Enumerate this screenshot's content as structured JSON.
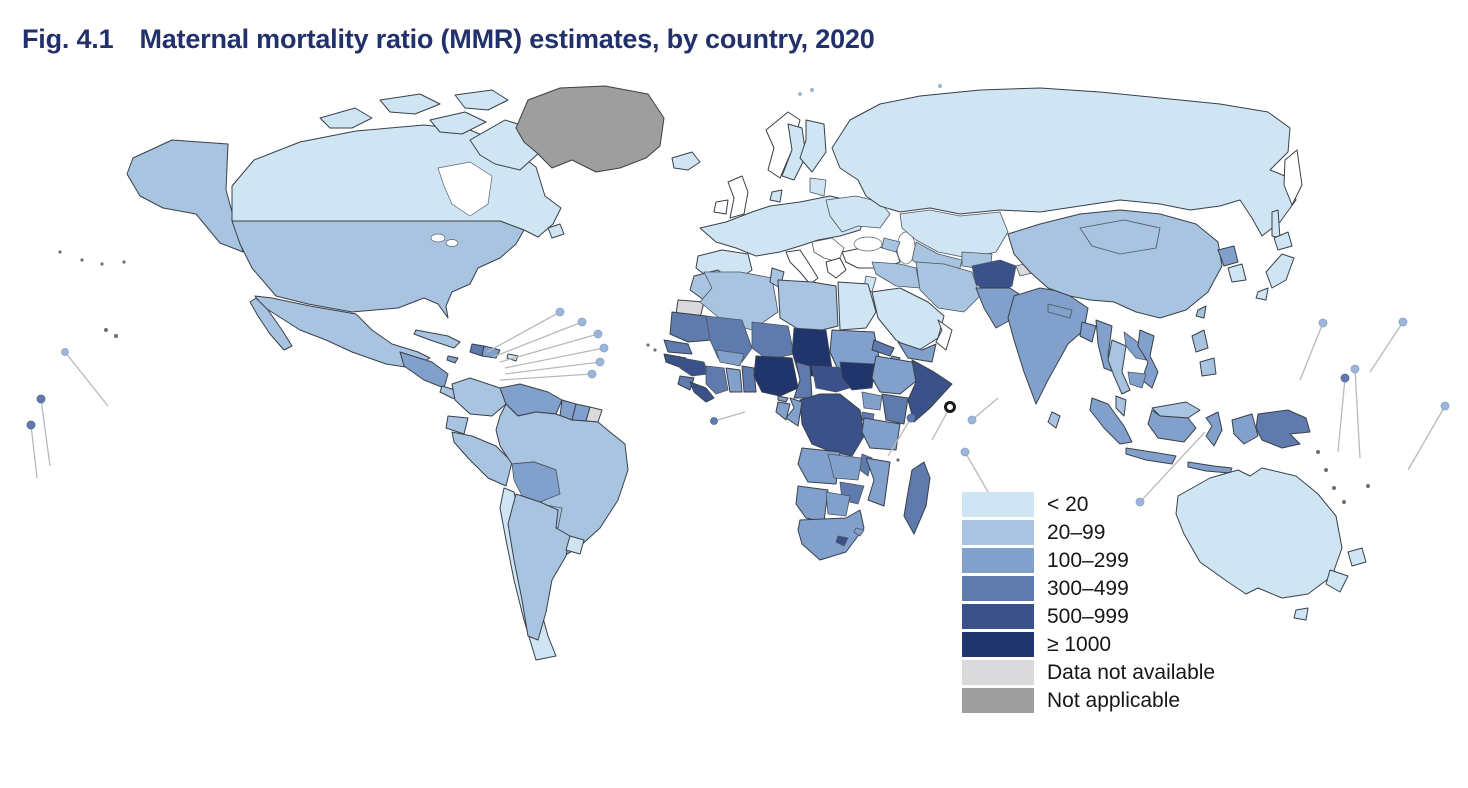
{
  "figure": {
    "number": "Fig. 4.1",
    "title": "Maternal mortality ratio (MMR) estimates, by country, 2020",
    "title_color": "#22316b"
  },
  "legend": {
    "items": [
      {
        "key": "lt20",
        "label": "< 20",
        "color": "#cfe5f4"
      },
      {
        "key": "c20_99",
        "label": "20–99",
        "color": "#a8c4e0"
      },
      {
        "key": "c100_299",
        "label": "100–299",
        "color": "#81a0cb"
      },
      {
        "key": "c300_499",
        "label": "300–499",
        "color": "#5f7aac"
      },
      {
        "key": "c500_999",
        "label": "500–999",
        "color": "#3a5289"
      },
      {
        "key": "ge1000",
        "label": "≥ 1000",
        "color": "#20356b"
      },
      {
        "key": "data_na",
        "label": "Data not available",
        "color": "#dadadc"
      },
      {
        "key": "not_applicable",
        "label": "Not applicable",
        "color": "#9e9e9e"
      }
    ]
  },
  "chart_data": {
    "type": "heatmap",
    "subtype": "choropleth-world-map",
    "title": "Fig. 4.1  Maternal mortality ratio (MMR) estimates, by country, 2020",
    "metric": "Maternal mortality ratio (MMR)",
    "year": "2020",
    "legend_position": "bottom-right",
    "categories": [
      "< 20",
      "20–99",
      "100–299",
      "300–499",
      "500–999",
      "≥ 1000",
      "Data not available",
      "Not applicable"
    ],
    "category_colors": [
      "#cfe5f4",
      "#a8c4e0",
      "#81a0cb",
      "#5f7aac",
      "#3a5289",
      "#20356b",
      "#dadadc",
      "#9e9e9e"
    ],
    "region_categories": {
      "canada": "lt20",
      "newfoundland": "lt20",
      "arctic-islands-1": "lt20",
      "arctic-islands-2": "lt20",
      "arctic-islands-3": "lt20",
      "arctic-islands-4": "lt20",
      "baffin-island": "lt20",
      "greenland": "not_applicable",
      "alaska": "c20_99",
      "usa": "c20_99",
      "mexico": "c20_99",
      "baja-california": "c20_99",
      "guatemala-honduras-nicaragua": "c100_299",
      "costa-rica-panama": "c20_99",
      "cuba": "c20_99",
      "jamaica": "c100_299",
      "haiti": "c300_499",
      "dominican-republic": "c100_299",
      "puerto-rico": "lt20",
      "colombia": "c20_99",
      "venezuela": "c100_299",
      "guyana": "c100_299",
      "suriname": "c100_299",
      "french-guiana": "data_na",
      "ecuador": "c20_99",
      "peru": "c20_99",
      "brazil": "c20_99",
      "bolivia": "c100_299",
      "paraguay": "c20_99",
      "chile": "lt20",
      "argentina": "c20_99",
      "uruguay": "lt20",
      "iceland": "lt20",
      "united-kingdom": "none",
      "ireland": "none",
      "norway": "none",
      "sweden": "lt20",
      "finland": "lt20",
      "baltic-states": "lt20",
      "denmark": "lt20",
      "west-central-europe": "lt20",
      "iberia": "lt20",
      "italy": "none",
      "balkans": "none",
      "greece": "none",
      "ukraine-east-europe": "lt20",
      "turkey": "none",
      "russia": "lt20",
      "kamchatka": "none",
      "sakhalin": "lt20",
      "kazakhstan": "lt20",
      "uzbekistan-turkmenistan": "c20_99",
      "kyrgyzstan-tajikistan": "c20_99",
      "caucasus": "c20_99",
      "syria-iraq": "c20_99",
      "iran": "c20_99",
      "saudi-arabia": "lt20",
      "jordan-israel": "lt20",
      "yemen": "c100_299",
      "oman": "none",
      "afghanistan": "c500_999",
      "jammu-kashmir": "data_na",
      "pakistan": "c100_299",
      "india": "c100_299",
      "nepal": "c100_299",
      "bangladesh": "c100_299",
      "sri-lanka": "c20_99",
      "china": "c20_99",
      "mongolia": "c20_99",
      "north-korea": "c100_299",
      "south-korea": "lt20",
      "japan-hokkaido": "lt20",
      "japan-honshu": "lt20",
      "japan-kyushu": "lt20",
      "taiwan": "c20_99",
      "myanmar": "c100_299",
      "thailand": "c20_99",
      "laos": "c100_299",
      "vietnam": "c100_299",
      "cambodia": "c100_299",
      "malaysia-peninsula": "c20_99",
      "malaysia-borneo": "c20_99",
      "philippines-luzon": "c20_99",
      "philippines-mindanao": "c20_99",
      "sumatra": "c100_299",
      "java": "c100_299",
      "kalimantan": "c100_299",
      "sulawesi": "c100_299",
      "lesser-sunda": "c100_299",
      "west-papua": "c100_299",
      "papua-new-guinea": "c300_499",
      "morocco": "c20_99",
      "western-sahara": "data_na",
      "algeria": "c20_99",
      "tunisia": "c20_99",
      "libya": "c20_99",
      "egypt": "lt20",
      "mauritania": "c300_499",
      "mali": "c300_499",
      "niger": "c300_499",
      "chad": "ge1000",
      "sudan": "c100_299",
      "eritrea": "c300_499",
      "djibouti": "c100_299",
      "senegal": "c300_499",
      "gambia-guinea-bissau": "c500_999",
      "guinea": "c500_999",
      "sierra-leone": "c300_499",
      "liberia": "c500_999",
      "cote-divoire": "c300_499",
      "burkina-faso": "c100_299",
      "ghana": "c100_299",
      "togo-benin": "c300_499",
      "nigeria": "ge1000",
      "cameroon": "c300_499",
      "central-african-republic": "c500_999",
      "south-sudan": "ge1000",
      "ethiopia": "c100_299",
      "somalia": "c500_999",
      "kenya": "c300_499",
      "uganda": "c100_299",
      "rwanda-burundi": "c300_499",
      "dr-congo": "c500_999",
      "congo": "c100_299",
      "gabon": "c100_299",
      "equatorial-guinea": "c100_299",
      "tanzania": "c100_299",
      "angola": "c100_299",
      "zambia": "c100_299",
      "malawi": "c300_499",
      "mozambique": "c100_299",
      "zimbabwe": "c300_499",
      "namibia": "c100_299",
      "botswana": "c100_299",
      "south-africa": "c100_299",
      "lesotho": "c500_999",
      "eswatini": "c100_299",
      "madagascar": "c300_499",
      "australia": "lt20",
      "tasmania": "lt20",
      "nz-north-island": "lt20",
      "nz-south-island": "lt20"
    }
  }
}
